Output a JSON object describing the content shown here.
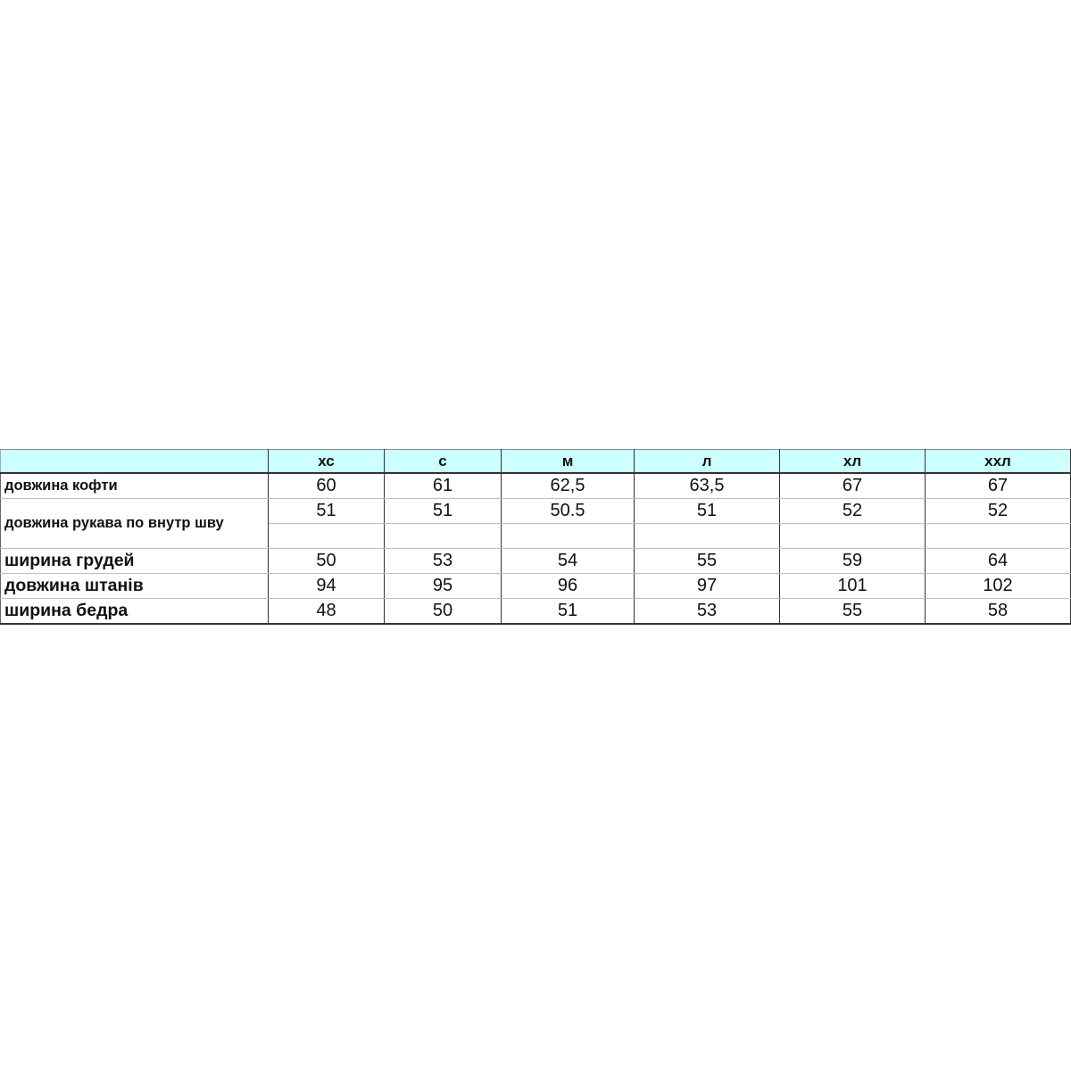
{
  "header_color": "#ccffff",
  "sizes": [
    "хс",
    "с",
    "м",
    "л",
    "хл",
    "ххл"
  ],
  "rows": [
    {
      "label": "довжина кофти",
      "values": [
        "60",
        "61",
        "62,5",
        "63,5",
        "67",
        "67"
      ]
    },
    {
      "label": "довжина рукава по внутр шву",
      "values": [
        "51",
        "51",
        "50.5",
        "51",
        "52",
        "52"
      ]
    },
    {
      "label": "ширина грудей",
      "values": [
        "50",
        "53",
        "54",
        "55",
        "59",
        "64"
      ]
    },
    {
      "label": "довжина штанів",
      "values": [
        "94",
        "95",
        "96",
        "97",
        "101",
        "102"
      ]
    },
    {
      "label": "ширина бедра",
      "values": [
        "48",
        "50",
        "51",
        "53",
        "55",
        "58"
      ]
    }
  ]
}
